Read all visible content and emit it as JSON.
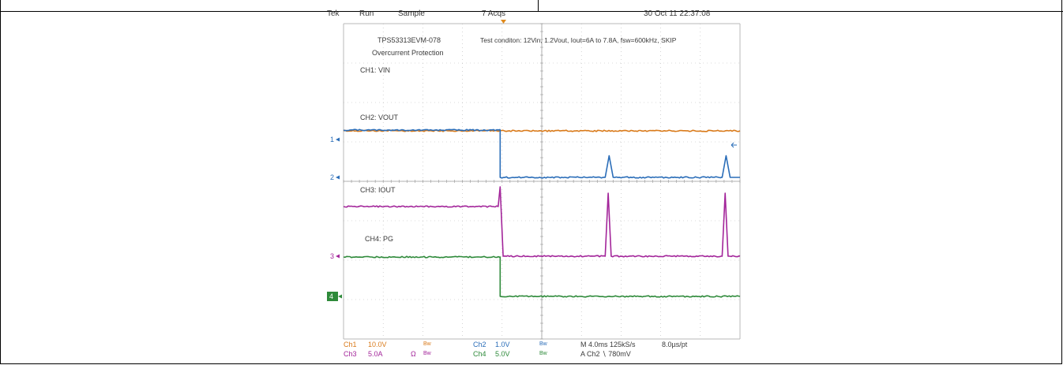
{
  "header": {
    "brand": "Tek",
    "run": "Run",
    "mode": "Sample",
    "acqs": "7 Acqs",
    "datetime": "30 Oct 11 22:37:08"
  },
  "annotations": {
    "board": "TPS53313EVM-078",
    "test": "Overcurrent Protection",
    "condition": "Test conditon: 12Vin, 1.2Vout, Iout=6A to 7.8A, fsw=600kHz, SKIP"
  },
  "footer": {
    "ch1_name": "Ch1",
    "ch1_scale": "10.0V",
    "ch1_bw": "Bw",
    "ch2_name": "Ch2",
    "ch2_scale": "1.0V",
    "ch2_bw": "Bw",
    "ch3_name": "Ch3",
    "ch3_scale": "5.0A",
    "ch3_ohm": "Ω",
    "ch3_bw": "Bw",
    "ch4_name": "Ch4",
    "ch4_scale": "5.0V",
    "ch4_bw": "Bw",
    "timebase": "M 4.0ms 125kS/s",
    "resolution": "8.0µs/pt",
    "trigger": "A  Ch2  ∖  780mV"
  },
  "colors": {
    "ch1": "#d97a1a",
    "ch2": "#2a6db8",
    "ch3": "#a3259a",
    "ch4": "#2e8a3a",
    "grid": "#b8b8b8",
    "text": "#3a3a3a"
  },
  "chart_data": {
    "type": "line",
    "x_unit": "ms",
    "x_divisions": 10,
    "time_per_div_ms": 4.0,
    "xlim": [
      0,
      40
    ],
    "trigger_ms": 20,
    "series": [
      {
        "name": "CH1: VIN",
        "channel": "1",
        "volts_per_div": 10.0,
        "unit": "V",
        "x": [
          0,
          40
        ],
        "y": [
          12,
          12
        ]
      },
      {
        "name": "CH2: VOUT",
        "channel": "2",
        "volts_per_div": 1.0,
        "unit": "V",
        "x": [
          0,
          15.8,
          15.8,
          26.4,
          26.8,
          27.2,
          38.2,
          38.6,
          39.0,
          40
        ],
        "y": [
          1.2,
          1.2,
          0.0,
          0.0,
          0.55,
          0.0,
          0.0,
          0.55,
          0.0,
          0.0
        ]
      },
      {
        "name": "CH3: IOUT",
        "channel": "3",
        "amps_per_div": 5.0,
        "unit": "A",
        "x": [
          0,
          15.6,
          15.8,
          16.1,
          26.4,
          26.7,
          27.0,
          38.2,
          38.5,
          38.8,
          40
        ],
        "y": [
          6.3,
          6.3,
          8.8,
          0.0,
          0.0,
          8.0,
          0.0,
          0.0,
          8.0,
          0.0,
          0.0
        ]
      },
      {
        "name": "CH4: PG",
        "channel": "4",
        "volts_per_div": 5.0,
        "unit": "V",
        "x": [
          0,
          15.8,
          15.8,
          40
        ],
        "y": [
          5.0,
          5.0,
          0.0,
          0.0
        ]
      }
    ],
    "markers": [
      "1",
      "2",
      "3",
      "4"
    ]
  }
}
